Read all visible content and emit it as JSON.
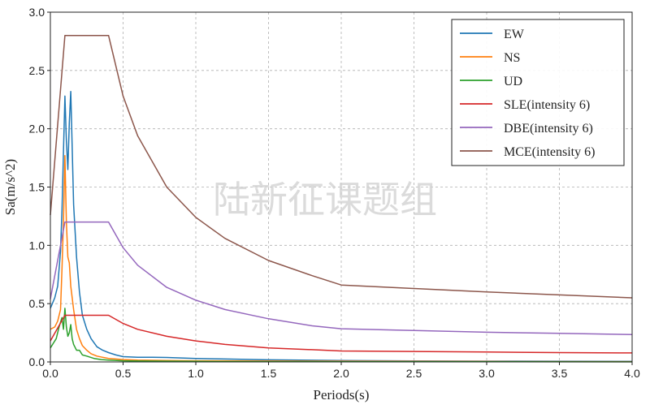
{
  "watermark": "陆新征课题组",
  "chart_data": {
    "type": "line",
    "xlabel": "Periods(s)",
    "ylabel": "Sa(m/s^2)",
    "xlim": [
      0.0,
      4.0
    ],
    "ylim": [
      0.0,
      3.0
    ],
    "xticks": [
      0.0,
      0.5,
      1.0,
      1.5,
      2.0,
      2.5,
      3.0,
      3.5,
      4.0
    ],
    "xtick_labels": [
      "0.0",
      "0.5",
      "1.0",
      "1.5",
      "2.0",
      "2.5",
      "3.0",
      "3.5",
      "4.0"
    ],
    "yticks": [
      0.0,
      0.5,
      1.0,
      1.5,
      2.0,
      2.5,
      3.0
    ],
    "ytick_labels": [
      "0.0",
      "0.5",
      "1.0",
      "1.5",
      "2.0",
      "2.5",
      "3.0"
    ],
    "grid": true,
    "legend_position": "top-right",
    "series": [
      {
        "name": "EW",
        "color": "#1f77b4",
        "x": [
          0.0,
          0.03,
          0.05,
          0.07,
          0.08,
          0.09,
          0.1,
          0.11,
          0.12,
          0.13,
          0.14,
          0.16,
          0.18,
          0.2,
          0.22,
          0.25,
          0.28,
          0.32,
          0.36,
          0.4,
          0.45,
          0.5,
          0.6,
          0.7,
          0.8,
          1.0,
          1.2,
          1.5,
          2.0,
          2.5,
          3.0,
          3.5,
          4.0
        ],
        "y": [
          0.46,
          0.55,
          0.65,
          0.95,
          1.3,
          1.8,
          2.28,
          1.9,
          1.65,
          2.05,
          2.32,
          1.35,
          0.9,
          0.6,
          0.4,
          0.28,
          0.2,
          0.13,
          0.1,
          0.08,
          0.06,
          0.045,
          0.04,
          0.04,
          0.038,
          0.03,
          0.025,
          0.018,
          0.012,
          0.009,
          0.007,
          0.006,
          0.005
        ]
      },
      {
        "name": "NS",
        "color": "#ff7f0e",
        "x": [
          0.0,
          0.03,
          0.05,
          0.07,
          0.08,
          0.09,
          0.1,
          0.11,
          0.12,
          0.13,
          0.14,
          0.16,
          0.18,
          0.2,
          0.22,
          0.25,
          0.28,
          0.32,
          0.36,
          0.4,
          0.45,
          0.5,
          0.6,
          0.8,
          1.0,
          1.5,
          2.0,
          3.0,
          4.0
        ],
        "y": [
          0.28,
          0.3,
          0.35,
          0.45,
          0.8,
          1.2,
          1.77,
          1.2,
          0.9,
          0.85,
          0.65,
          0.45,
          0.28,
          0.2,
          0.14,
          0.1,
          0.07,
          0.05,
          0.04,
          0.03,
          0.025,
          0.02,
          0.015,
          0.012,
          0.01,
          0.008,
          0.006,
          0.004,
          0.003
        ]
      },
      {
        "name": "UD",
        "color": "#2ca02c",
        "x": [
          0.0,
          0.02,
          0.04,
          0.06,
          0.08,
          0.09,
          0.1,
          0.11,
          0.12,
          0.13,
          0.14,
          0.15,
          0.16,
          0.18,
          0.2,
          0.22,
          0.25,
          0.3,
          0.35,
          0.4,
          0.5,
          0.6,
          0.8,
          1.0,
          1.5,
          2.0,
          3.0,
          4.0
        ],
        "y": [
          0.12,
          0.16,
          0.2,
          0.3,
          0.38,
          0.28,
          0.46,
          0.3,
          0.22,
          0.25,
          0.32,
          0.2,
          0.15,
          0.1,
          0.1,
          0.06,
          0.05,
          0.03,
          0.02,
          0.015,
          0.01,
          0.008,
          0.006,
          0.005,
          0.003,
          0.002,
          0.002,
          0.001
        ]
      },
      {
        "name": "SLE(intensity 6)",
        "color": "#d62728",
        "x": [
          0.0,
          0.1,
          0.4,
          0.5,
          0.6,
          0.8,
          1.0,
          1.2,
          1.5,
          1.8,
          2.0,
          2.5,
          3.0,
          3.5,
          4.0
        ],
        "y": [
          0.18,
          0.4,
          0.4,
          0.33,
          0.28,
          0.22,
          0.18,
          0.15,
          0.12,
          0.105,
          0.094,
          0.09,
          0.085,
          0.08,
          0.077
        ]
      },
      {
        "name": "DBE(intensity 6)",
        "color": "#9467bd",
        "x": [
          0.0,
          0.1,
          0.4,
          0.5,
          0.6,
          0.8,
          1.0,
          1.2,
          1.5,
          1.8,
          2.0,
          2.5,
          3.0,
          3.5,
          4.0
        ],
        "y": [
          0.54,
          1.2,
          1.2,
          0.98,
          0.83,
          0.64,
          0.53,
          0.45,
          0.37,
          0.31,
          0.285,
          0.27,
          0.255,
          0.245,
          0.235
        ]
      },
      {
        "name": "MCE(intensity 6)",
        "color": "#8c564b",
        "x": [
          0.0,
          0.1,
          0.4,
          0.5,
          0.6,
          0.8,
          1.0,
          1.2,
          1.5,
          1.8,
          2.0,
          2.5,
          3.0,
          3.5,
          4.0
        ],
        "y": [
          1.26,
          2.8,
          2.8,
          2.28,
          1.94,
          1.5,
          1.24,
          1.06,
          0.87,
          0.74,
          0.66,
          0.63,
          0.6,
          0.575,
          0.55
        ]
      }
    ]
  }
}
